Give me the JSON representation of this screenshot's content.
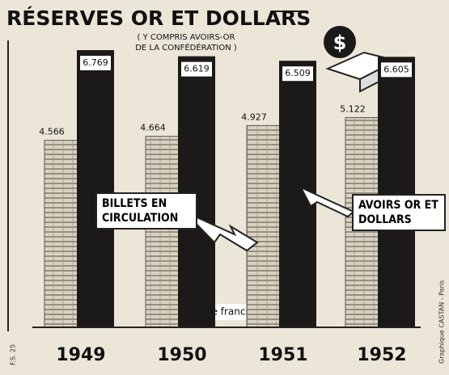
{
  "chart_data": {
    "type": "bar",
    "title": "RÉSERVES OR ET DOLLARS",
    "subtitle": [
      "( Y COMPRIS AVOIRS-OR",
      "DE LA CONFÉDÉRATION )"
    ],
    "annotations": [
      "en millions de francs suisses",
      "F.S. 25",
      "Graphique CASTAN - Paris"
    ],
    "categories": [
      "1949",
      "1950",
      "1951",
      "1952"
    ],
    "series": [
      {
        "name": "BILLETS EN CIRCULATION",
        "color": "#d9d2c2",
        "values": [
          4566,
          4664,
          4927,
          5122
        ],
        "value_labels": [
          "4.566",
          "4.664",
          "4.927",
          "5.122"
        ]
      },
      {
        "name": "AVOIRS OR ET DOLLARS",
        "color": "#1c1a18",
        "values": [
          6769,
          6619,
          6509,
          6605
        ],
        "value_labels": [
          "6.769",
          "6.619",
          "6.509",
          "6.605"
        ]
      }
    ]
  }
}
